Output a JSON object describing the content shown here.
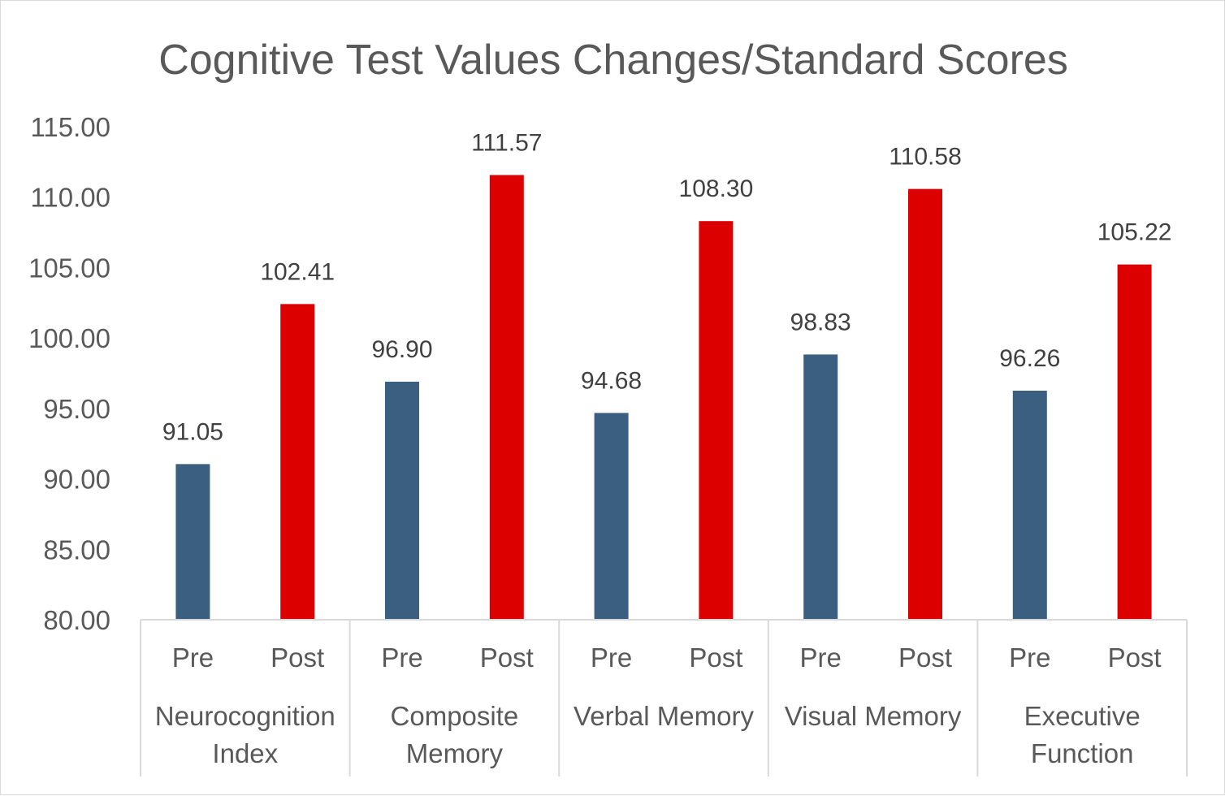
{
  "chart_data": {
    "type": "bar",
    "title": "Cognitive Test Values Changes/Standard Scores",
    "ylim": [
      80,
      115
    ],
    "yticks": [
      "80.00",
      "85.00",
      "90.00",
      "95.00",
      "100.00",
      "105.00",
      "110.00",
      "115.00"
    ],
    "grid": false,
    "groups": [
      {
        "label": [
          "Neurocognition",
          "Index"
        ],
        "bars": [
          {
            "label": "Pre",
            "value": 91.05,
            "display": "91.05"
          },
          {
            "label": "Post",
            "value": 102.41,
            "display": "102.41"
          }
        ]
      },
      {
        "label": [
          "Composite",
          "Memory"
        ],
        "bars": [
          {
            "label": "Pre",
            "value": 96.9,
            "display": "96.90"
          },
          {
            "label": "Post",
            "value": 111.57,
            "display": "111.57"
          }
        ]
      },
      {
        "label": [
          "Verbal Memory"
        ],
        "bars": [
          {
            "label": "Pre",
            "value": 94.68,
            "display": "94.68"
          },
          {
            "label": "Post",
            "value": 108.3,
            "display": "108.30"
          }
        ]
      },
      {
        "label": [
          "Visual Memory"
        ],
        "bars": [
          {
            "label": "Pre",
            "value": 98.83,
            "display": "98.83"
          },
          {
            "label": "Post",
            "value": 110.58,
            "display": "110.58"
          }
        ]
      },
      {
        "label": [
          "Executive",
          "Function"
        ],
        "bars": [
          {
            "label": "Pre",
            "value": 96.26,
            "display": "96.26"
          },
          {
            "label": "Post",
            "value": 105.22,
            "display": "105.22"
          }
        ]
      }
    ],
    "colors": {
      "Pre": "#3a5f80",
      "Post": "#dc0000",
      "axis": "#d9d9d9"
    }
  }
}
